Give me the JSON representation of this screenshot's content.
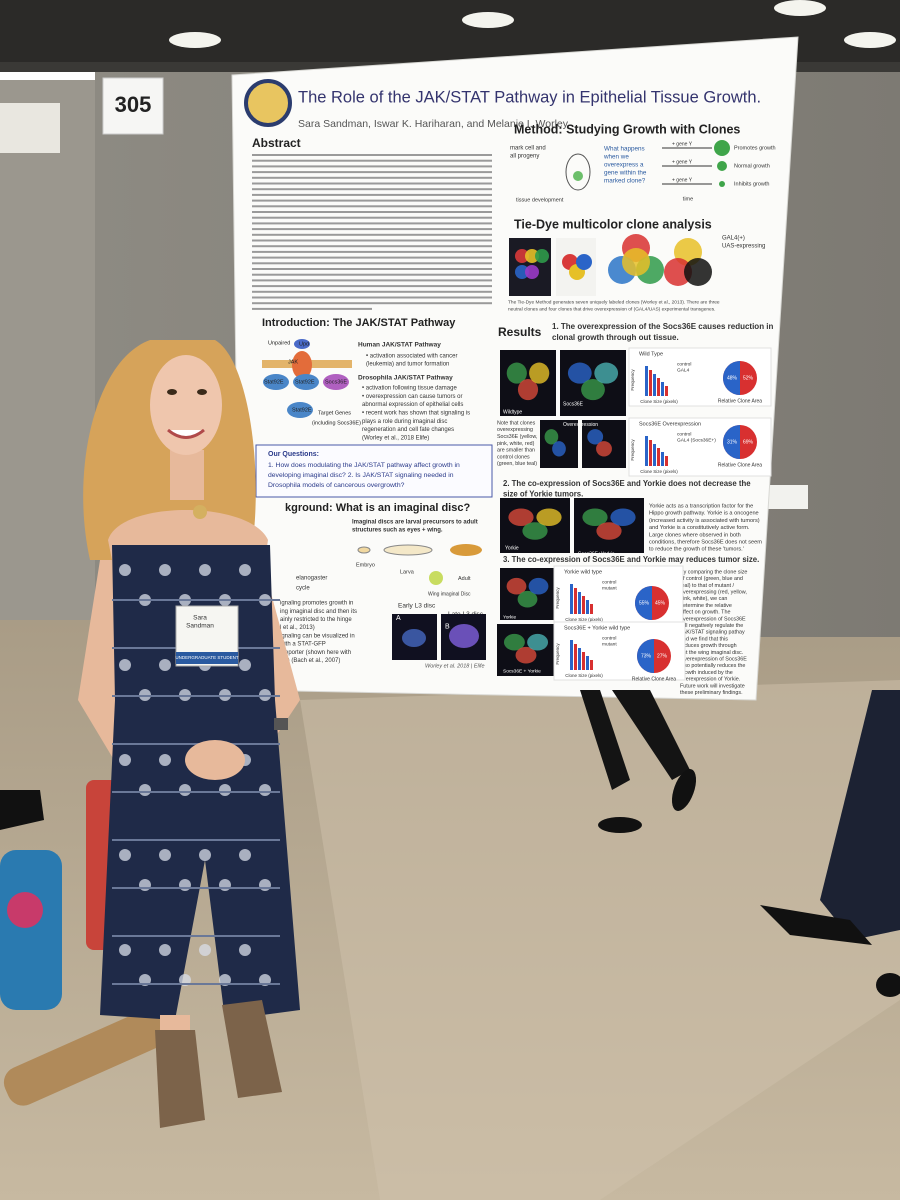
{
  "booth_number": "305",
  "badge": {
    "name": [
      "Sara",
      "Sandman"
    ],
    "role": "UNDERGRADUATE STUDENT"
  },
  "poster": {
    "title": "The Role of the JAK/STAT Pathway in Epithelial Tissue Growth.",
    "authors": "Sara Sandman, Iswar K. Hariharan, and Melanie I. Worley",
    "abstract_heading": "Abstract",
    "method": {
      "heading": "Method: Studying Growth with Clones",
      "mark_label": [
        "mark cell and",
        "all progeny"
      ],
      "development_label": "tissue development",
      "question": [
        "What happens",
        "when we",
        "overexpress a",
        "gene within the",
        "marked clone?"
      ],
      "gene_labels": [
        "+ gene Y",
        "+ gene Y",
        "+ gene Y"
      ],
      "outcomes": [
        "Promotes growth",
        "Normal growth",
        "Inhibits growth"
      ],
      "time_label": "time"
    },
    "tie_dye": {
      "heading": "Tie-Dye multicolor clone analysis",
      "legend": [
        "GAL4(+)",
        "UAS-expressing"
      ],
      "caption": [
        "The Tie-Dye Method generates seven uniquely labeled clones (Worley et al., 2013). There are three",
        "neutral clones and four clones that drive overexpression of (GAL4/UAS) experimental transgenes."
      ]
    },
    "introduction": {
      "heading": "Introduction: The JAK/STAT Pathway",
      "diagram_labels": [
        "Unpaired",
        "Upd",
        "JAK",
        "Stat92E",
        "Stat92E",
        "Socs36E",
        "Stat92E",
        "Target Genes",
        "(including Socs36E)"
      ],
      "human_heading": "Human JAK/STAT Pathway",
      "human_points": [
        "• activation associated with cancer",
        "(leukemia) and tumor formation"
      ],
      "drosophila_heading": "Drosophila JAK/STAT Pathway",
      "drosophila_points": [
        "• activation following tissue damage",
        "• overexpression can cause tumors or",
        "abnormal expression of epithelial cells",
        "• recent work has shown that signaling is",
        "plays a role during imaginal disc",
        "regeneration and cell fate changes",
        "(Worley et al., 2018 Elife)"
      ]
    },
    "questions": {
      "heading": "Our Questions:",
      "lines": [
        "1. How does modulating the JAK/STAT pathway affect growth in",
        "developing imaginal disc?  2. Is JAK/STAT signaling needed in",
        "Drosophila models of cancerous overgrowth?"
      ]
    },
    "background": {
      "heading": "kground: What is an imaginal disc?",
      "text": [
        "Imaginal discs are larval precursors to adult",
        "structures such as eyes + wing."
      ],
      "stages": [
        "Embryo",
        "Larva",
        "Adult"
      ],
      "wing_label": "Wing imaginal Disc",
      "life_cycle": [
        "elanogaster",
        "cycle"
      ],
      "side_text": [
        "ignaling promotes growth in",
        "ing imaginal disc and then its",
        "ainly restricted to the hinge",
        "l et al., 2013)",
        "ignaling can be visualized in",
        " with a STAT-GFP",
        "l reporter (shown here with",
        "FP) (Bach et al., 2007)"
      ],
      "disc_labels": [
        "Early L3 disc",
        "Late L3 disc"
      ],
      "panel_letters": [
        "A",
        "B"
      ],
      "citation": "Worley et al. 2018 | Elife"
    },
    "results": {
      "heading": "Results",
      "finding_1": [
        "1. The overexpression of the Socs36E causes reduction in",
        "clonal growth through out tissue."
      ],
      "image_labels_1": [
        "Wildtype",
        "Socs36E",
        "Overexpression"
      ],
      "note": [
        "Note that clones",
        "overexpressing",
        "Socs36E (yellow,",
        "pink, white, red)",
        "are smaller than",
        "control clones",
        "(green, blue teal)"
      ],
      "finding_2": [
        "2. The co-expression of Socs36E and Yorkie does not decrease the",
        "size of Yorkie tumors."
      ],
      "image_labels_2": [
        "Yorkie",
        "Socs36E+Yorkie"
      ],
      "finding_2_text": [
        "Yorkie acts as a transcription factor for the",
        "Hippo growth pathway. Yorkie is a oncogene",
        "(increased activity is associated with tumors)",
        "and Yorkie is a constitutively active form.",
        "Large clones where observed in both",
        "conditions, therefore Socs36E does not seem",
        "to reduce the growth of these 'tumors.'"
      ],
      "finding_3": "3. The co-expression of Socs36E and Yorkie may reduces tumor size.",
      "image_labels_3": [
        "Yorkie",
        "Socs36E + Yorkie"
      ],
      "finding_3_text": [
        "By comparing the clone size",
        "of control (green, blue and",
        "teal) to that of mutant /",
        "overexpressing (red, yellow,",
        "pink, white), we can",
        "determine the relative",
        "effect on growth. The",
        "overexpression of Socs36E",
        "will negatively regulate the",
        "JAK/STAT signaling pathay",
        "and we find that this",
        "reduces growth through",
        "out the wing imaginal disc.",
        "Overexpression of Socs36E",
        "also potentially reduces the",
        "growth induced by the",
        "overexpression of Yorkie.",
        "Future work will investigate",
        "these preliminary findings."
      ],
      "charts": [
        {
          "title": "Wild Type",
          "legend": [
            "control",
            "GAL4"
          ],
          "y_label": "Frequency",
          "x_label": "Clone Size (pixels)",
          "pie_label": "Relative Clone Area",
          "pie_values": [
            "48%",
            "52%"
          ]
        },
        {
          "title": "Socs36E Overexpression",
          "legend": [
            "control",
            "GAL4 (Socs36E+)"
          ],
          "y_label": "Frequency",
          "x_label": "Clone Size (pixels)",
          "pie_label": "Relative Clone Area",
          "pie_values": [
            "31%",
            "69%"
          ]
        },
        {
          "title": "Yorkie wild type",
          "legend": [
            "control",
            "mutant"
          ],
          "y_label": "Frequency",
          "x_label": "Clone Size (pixels)",
          "pie_label": "Relative Clone Area",
          "pie_values": [
            "55%",
            "45%"
          ]
        },
        {
          "title": "Socs36E + Yorkie wild type",
          "legend": [
            "control",
            "mutant"
          ],
          "y_label": "Frequency",
          "x_label": "Clone Size (pixels)",
          "pie_label": "Relative Clone Area",
          "pie_values": [
            "73%",
            "27%"
          ]
        }
      ]
    }
  }
}
